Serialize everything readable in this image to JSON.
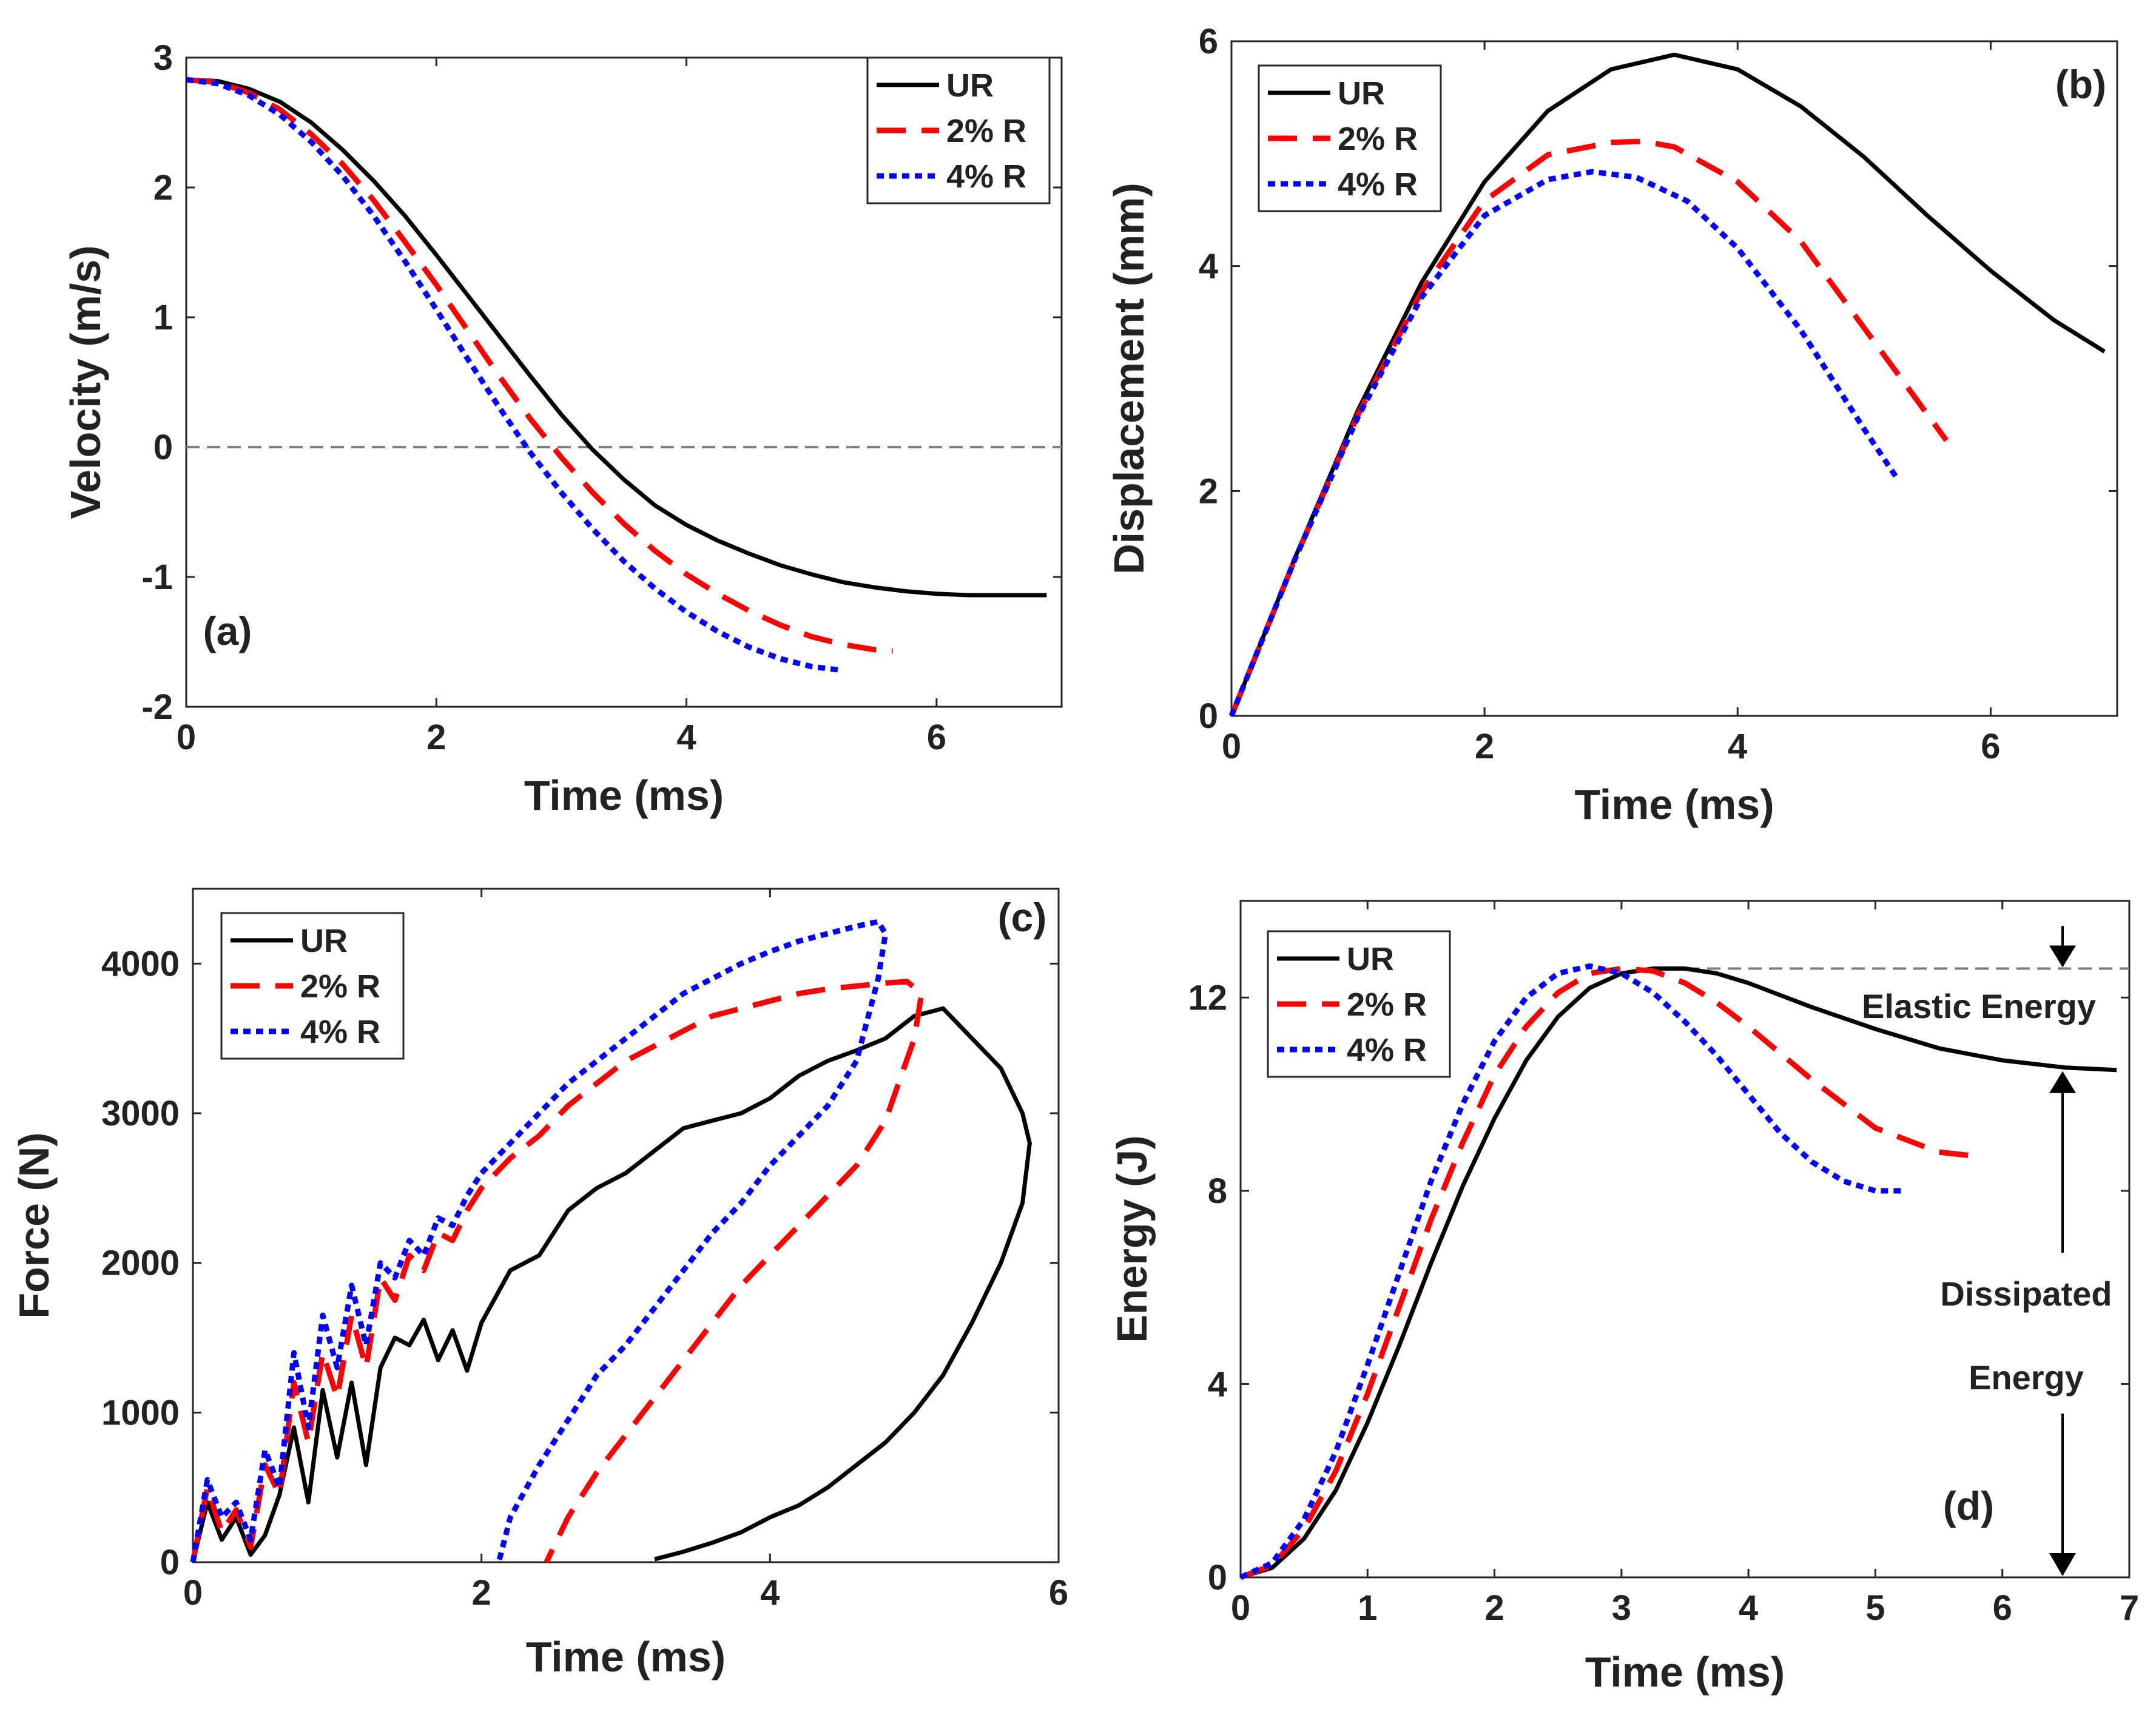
{
  "figure": {
    "panels": 4
  },
  "chart_data": [
    {
      "id": "a",
      "type": "line",
      "panel_label": "(a)",
      "xlabel": "Time (ms)",
      "ylabel": "Velocity (m/s)",
      "xlim": [
        0,
        7
      ],
      "ylim": [
        -2,
        3
      ],
      "xticks": [
        0,
        2,
        4,
        6
      ],
      "yticks": [
        -2,
        -1,
        0,
        1,
        2,
        3
      ],
      "legend": {
        "position": "top-right"
      },
      "reference_line": {
        "y": 0,
        "style": "dashed",
        "color": "#808080"
      },
      "series": [
        {
          "name": "UR",
          "style": "solid",
          "color": "#000000",
          "x": [
            0,
            0.25,
            0.5,
            0.75,
            1,
            1.25,
            1.5,
            1.75,
            2,
            2.25,
            2.5,
            2.75,
            3,
            3.25,
            3.5,
            3.75,
            4,
            4.25,
            4.5,
            4.75,
            5,
            5.25,
            5.5,
            5.75,
            6,
            6.25,
            6.5,
            6.75,
            6.88
          ],
          "y": [
            2.83,
            2.82,
            2.76,
            2.66,
            2.5,
            2.29,
            2.05,
            1.78,
            1.48,
            1.17,
            0.86,
            0.55,
            0.25,
            -0.02,
            -0.25,
            -0.45,
            -0.6,
            -0.72,
            -0.82,
            -0.91,
            -0.98,
            -1.04,
            -1.08,
            -1.11,
            -1.13,
            -1.14,
            -1.14,
            -1.14,
            -1.14
          ]
        },
        {
          "name": "2% R",
          "style": "dashed",
          "color": "#ff0000",
          "x": [
            0,
            0.25,
            0.5,
            0.75,
            1,
            1.25,
            1.5,
            1.75,
            2,
            2.25,
            2.5,
            2.75,
            3,
            3.25,
            3.5,
            3.75,
            4,
            4.25,
            4.5,
            4.75,
            5,
            5.25,
            5.5,
            5.65
          ],
          "y": [
            2.83,
            2.81,
            2.73,
            2.6,
            2.41,
            2.18,
            1.9,
            1.58,
            1.25,
            0.9,
            0.55,
            0.22,
            -0.08,
            -0.35,
            -0.59,
            -0.8,
            -0.98,
            -1.13,
            -1.26,
            -1.37,
            -1.46,
            -1.52,
            -1.56,
            -1.57
          ]
        },
        {
          "name": "4% R",
          "style": "dotted",
          "color": "#0000ff",
          "x": [
            0,
            0.25,
            0.5,
            0.75,
            1,
            1.25,
            1.5,
            1.75,
            2,
            2.25,
            2.5,
            2.75,
            3,
            3.25,
            3.5,
            3.75,
            4,
            4.25,
            4.5,
            4.75,
            5,
            5.25
          ],
          "y": [
            2.83,
            2.8,
            2.71,
            2.56,
            2.35,
            2.09,
            1.78,
            1.43,
            1.06,
            0.68,
            0.31,
            -0.04,
            -0.35,
            -0.63,
            -0.88,
            -1.09,
            -1.27,
            -1.42,
            -1.54,
            -1.63,
            -1.69,
            -1.72
          ]
        }
      ]
    },
    {
      "id": "b",
      "type": "line",
      "panel_label": "(b)",
      "xlabel": "Time (ms)",
      "ylabel": "Displacement (mm)",
      "xlim": [
        0,
        7
      ],
      "ylim": [
        0,
        6
      ],
      "xticks": [
        0,
        2,
        4,
        6
      ],
      "yticks": [
        0,
        2,
        4,
        6
      ],
      "legend": {
        "position": "top-left"
      },
      "series": [
        {
          "name": "UR",
          "style": "solid",
          "color": "#000000",
          "x": [
            0,
            0.5,
            1,
            1.5,
            2,
            2.5,
            3,
            3.5,
            4,
            4.5,
            5,
            5.5,
            6,
            6.5,
            6.9
          ],
          "y": [
            0,
            1.4,
            2.72,
            3.85,
            4.75,
            5.38,
            5.75,
            5.88,
            5.75,
            5.42,
            4.97,
            4.45,
            3.96,
            3.52,
            3.24
          ]
        },
        {
          "name": "2% R",
          "style": "dashed",
          "color": "#ff0000",
          "x": [
            0,
            0.5,
            1,
            1.5,
            2,
            2.5,
            3,
            3.25,
            3.5,
            4,
            4.5,
            5,
            5.3,
            5.65
          ],
          "y": [
            0,
            1.39,
            2.68,
            3.77,
            4.58,
            4.99,
            5.1,
            5.11,
            5.06,
            4.75,
            4.22,
            3.45,
            2.99,
            2.45
          ]
        },
        {
          "name": "4% R",
          "style": "dotted",
          "color": "#0000ff",
          "x": [
            0,
            0.5,
            1,
            1.5,
            2,
            2.5,
            2.85,
            3.2,
            3.6,
            4,
            4.5,
            5,
            5.25
          ],
          "y": [
            0,
            1.39,
            2.66,
            3.72,
            4.45,
            4.77,
            4.84,
            4.79,
            4.58,
            4.16,
            3.43,
            2.55,
            2.13
          ]
        }
      ]
    },
    {
      "id": "c",
      "type": "line",
      "panel_label": "(c)",
      "xlabel": "Time (ms)",
      "ylabel": "Force (N)",
      "xlim": [
        0,
        6
      ],
      "ylim": [
        0,
        4500
      ],
      "xticks": [
        0,
        2,
        4,
        6
      ],
      "yticks": [
        0,
        1000,
        2000,
        3000,
        4000
      ],
      "legend": {
        "position": "top-left"
      },
      "series": [
        {
          "name": "UR",
          "style": "solid",
          "color": "#000000",
          "x": [
            0,
            0.1,
            0.2,
            0.3,
            0.4,
            0.5,
            0.6,
            0.7,
            0.8,
            0.9,
            1,
            1.1,
            1.2,
            1.3,
            1.4,
            1.5,
            1.6,
            1.7,
            1.8,
            1.9,
            2,
            2.2,
            2.4,
            2.6,
            2.8,
            3,
            3.2,
            3.4,
            3.6,
            3.8,
            4,
            4.2,
            4.4,
            4.6,
            4.8,
            5,
            5.2,
            5.4,
            5.6,
            5.75,
            5.8,
            5.75,
            5.6,
            5.4,
            5.2,
            5,
            4.8,
            4.6,
            4.4,
            4.2,
            4,
            3.8,
            3.6,
            3.4,
            3.2
          ],
          "y": [
            0,
            400,
            150,
            300,
            50,
            180,
            450,
            900,
            400,
            1150,
            700,
            1200,
            650,
            1300,
            1500,
            1450,
            1620,
            1350,
            1550,
            1280,
            1600,
            1950,
            2050,
            2350,
            2500,
            2600,
            2750,
            2900,
            2950,
            3000,
            3100,
            3250,
            3350,
            3420,
            3500,
            3650,
            3700,
            3500,
            3300,
            3000,
            2800,
            2400,
            2000,
            1600,
            1250,
            1000,
            800,
            650,
            500,
            380,
            300,
            200,
            130,
            70,
            20
          ]
        },
        {
          "name": "2% R",
          "style": "dashed",
          "color": "#ff0000",
          "x": [
            0,
            0.1,
            0.2,
            0.3,
            0.4,
            0.5,
            0.6,
            0.7,
            0.8,
            0.9,
            1,
            1.1,
            1.2,
            1.3,
            1.4,
            1.5,
            1.6,
            1.7,
            1.8,
            1.9,
            2,
            2.2,
            2.4,
            2.6,
            2.8,
            3,
            3.2,
            3.4,
            3.6,
            3.8,
            4,
            4.2,
            4.4,
            4.6,
            4.8,
            4.95,
            5.05,
            5.0,
            4.8,
            4.6,
            4.4,
            4.2,
            4,
            3.8,
            3.6,
            3.4,
            3.2,
            3,
            2.8,
            2.6,
            2.45
          ],
          "y": [
            0,
            500,
            200,
            350,
            100,
            650,
            450,
            1200,
            800,
            1400,
            1100,
            1650,
            1300,
            1900,
            1750,
            2050,
            1950,
            2200,
            2150,
            2350,
            2500,
            2700,
            2850,
            3050,
            3200,
            3350,
            3450,
            3550,
            3650,
            3700,
            3750,
            3800,
            3830,
            3850,
            3870,
            3880,
            3800,
            3500,
            2950,
            2650,
            2450,
            2250,
            2050,
            1850,
            1600,
            1350,
            1100,
            850,
            600,
            300,
            0
          ]
        },
        {
          "name": "4% R",
          "style": "dotted",
          "color": "#0000ff",
          "x": [
            0,
            0.1,
            0.2,
            0.3,
            0.4,
            0.5,
            0.6,
            0.7,
            0.8,
            0.9,
            1,
            1.1,
            1.2,
            1.3,
            1.4,
            1.5,
            1.6,
            1.7,
            1.8,
            1.9,
            2,
            2.2,
            2.4,
            2.6,
            2.8,
            3,
            3.2,
            3.4,
            3.6,
            3.8,
            4,
            4.2,
            4.4,
            4.6,
            4.75,
            4.8,
            4.75,
            4.6,
            4.4,
            4.2,
            4,
            3.8,
            3.6,
            3.4,
            3.2,
            3,
            2.8,
            2.6,
            2.4,
            2.2,
            2.12
          ],
          "y": [
            0,
            550,
            300,
            400,
            150,
            750,
            500,
            1400,
            900,
            1650,
            1300,
            1850,
            1450,
            2000,
            1900,
            2150,
            2050,
            2300,
            2250,
            2450,
            2600,
            2800,
            3000,
            3200,
            3350,
            3500,
            3650,
            3800,
            3900,
            4000,
            4080,
            4150,
            4200,
            4250,
            4280,
            4200,
            3900,
            3350,
            3050,
            2850,
            2650,
            2400,
            2200,
            1950,
            1700,
            1450,
            1250,
            950,
            650,
            300,
            0
          ]
        }
      ]
    },
    {
      "id": "d",
      "type": "line",
      "panel_label": "(d)",
      "xlabel": "Time (ms)",
      "ylabel": "Energy (J)",
      "xlim": [
        0,
        7
      ],
      "ylim": [
        0,
        14
      ],
      "xticks": [
        0,
        1,
        2,
        3,
        4,
        5,
        6,
        7
      ],
      "yticks": [
        0,
        4,
        8,
        12
      ],
      "legend": {
        "position": "top-left"
      },
      "reference_line": {
        "y": 12.6,
        "x_from": 3.35,
        "style": "dashed",
        "color": "#808080"
      },
      "annotations": {
        "elastic": "Elastic Energy",
        "dissipated_line1": "Dissipated",
        "dissipated_line2": "Energy"
      },
      "series": [
        {
          "name": "UR",
          "style": "solid",
          "color": "#000000",
          "x": [
            0,
            0.25,
            0.5,
            0.75,
            1,
            1.25,
            1.5,
            1.75,
            2,
            2.25,
            2.5,
            2.75,
            3,
            3.25,
            3.5,
            3.75,
            4,
            4.5,
            5,
            5.5,
            6,
            6.5,
            6.9
          ],
          "y": [
            0,
            0.2,
            0.8,
            1.8,
            3.2,
            4.8,
            6.5,
            8.1,
            9.5,
            10.7,
            11.6,
            12.2,
            12.5,
            12.6,
            12.6,
            12.5,
            12.3,
            11.8,
            11.35,
            10.95,
            10.7,
            10.55,
            10.5
          ]
        },
        {
          "name": "2% R",
          "style": "dashed",
          "color": "#ff0000",
          "x": [
            0,
            0.25,
            0.5,
            0.75,
            1,
            1.25,
            1.5,
            1.75,
            2,
            2.25,
            2.5,
            2.75,
            3,
            3.25,
            3.5,
            3.75,
            4,
            4.5,
            5,
            5.5,
            5.85
          ],
          "y": [
            0,
            0.25,
            1.0,
            2.2,
            3.8,
            5.6,
            7.4,
            9.0,
            10.4,
            11.4,
            12.1,
            12.5,
            12.6,
            12.55,
            12.3,
            11.9,
            11.4,
            10.3,
            9.3,
            8.8,
            8.7
          ]
        },
        {
          "name": "4% R",
          "style": "dotted",
          "color": "#0000ff",
          "x": [
            0,
            0.25,
            0.5,
            0.75,
            1,
            1.25,
            1.5,
            1.75,
            2,
            2.25,
            2.5,
            2.75,
            3,
            3.25,
            3.5,
            3.75,
            4,
            4.25,
            4.5,
            4.75,
            5,
            5.2
          ],
          "y": [
            0,
            0.3,
            1.2,
            2.6,
            4.4,
            6.3,
            8.2,
            9.8,
            11.1,
            12.0,
            12.5,
            12.65,
            12.5,
            12.1,
            11.5,
            10.8,
            10.0,
            9.2,
            8.6,
            8.2,
            8.0,
            8.0
          ]
        }
      ]
    }
  ]
}
